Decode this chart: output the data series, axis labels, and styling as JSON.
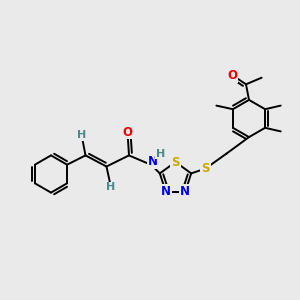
{
  "background_color": "#eaeaea",
  "atom_colors": {
    "C": "#000000",
    "H": "#4a8a8a",
    "N": "#0000ee",
    "O": "#ee0000",
    "S": "#ccaa00"
  },
  "bond_color": "#000000",
  "bond_width": 1.4,
  "font_size_atom": 8.5,
  "font_size_H": 8.0
}
